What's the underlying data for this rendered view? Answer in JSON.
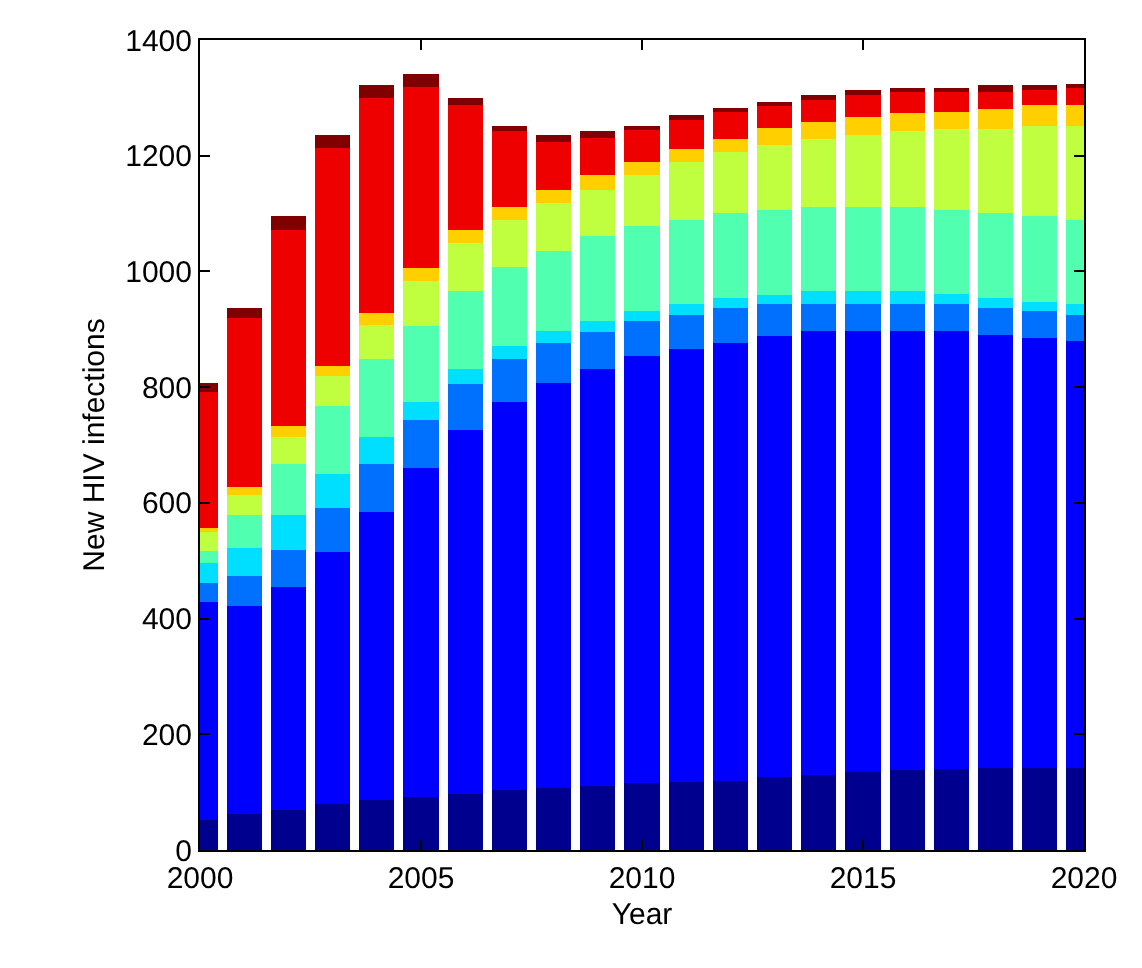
{
  "chart_data": {
    "type": "bar",
    "stacked": true,
    "xlabel": "Year",
    "ylabel": "New HIV infections",
    "x": [
      2000,
      2001,
      2002,
      2003,
      2004,
      2005,
      2006,
      2007,
      2008,
      2009,
      2010,
      2011,
      2012,
      2013,
      2014,
      2015,
      2016,
      2017,
      2018,
      2019,
      2020
    ],
    "xlim": [
      2000,
      2020
    ],
    "xticks": [
      2000,
      2005,
      2010,
      2015,
      2020
    ],
    "ylim": [
      0,
      1400
    ],
    "yticks": [
      0,
      200,
      400,
      600,
      800,
      1000,
      1200,
      1400
    ],
    "series": [
      {
        "color": "#00008f",
        "values": [
          52,
          63,
          69,
          80,
          86,
          92,
          97,
          103,
          107,
          111,
          115,
          117,
          120,
          126,
          130,
          135,
          138,
          140,
          141,
          141,
          141
        ]
      },
      {
        "color": "#0000ff",
        "values": [
          376,
          358,
          386,
          435,
          499,
          569,
          629,
          671,
          701,
          720,
          739,
          749,
          757,
          763,
          767,
          762,
          759,
          757,
          750,
          744,
          738
        ]
      },
      {
        "color": "#0070ff",
        "values": [
          34,
          53,
          64,
          76,
          82,
          82,
          80,
          75,
          69,
          64,
          60,
          59,
          60,
          54,
          46,
          46,
          46,
          46,
          46,
          46,
          46
        ]
      },
      {
        "color": "#00dfff",
        "values": [
          34,
          48,
          60,
          59,
          47,
          31,
          25,
          22,
          20,
          19,
          17,
          18,
          17,
          17,
          23,
          23,
          23,
          18,
          17,
          17,
          18
        ]
      },
      {
        "color": "#50ffaf",
        "values": [
          20,
          57,
          88,
          118,
          135,
          132,
          136,
          136,
          138,
          147,
          147,
          146,
          147,
          147,
          146,
          146,
          146,
          146,
          147,
          147,
          146
        ]
      },
      {
        "color": "#bfff40",
        "values": [
          34,
          34,
          47,
          52,
          59,
          78,
          82,
          82,
          83,
          80,
          88,
          100,
          106,
          112,
          117,
          124,
          130,
          139,
          145,
          157,
          163
        ]
      },
      {
        "color": "#ffcf00",
        "values": [
          6,
          14,
          18,
          17,
          21,
          22,
          23,
          23,
          23,
          26,
          24,
          23,
          22,
          29,
          29,
          31,
          31,
          30,
          35,
          35,
          36
        ]
      },
      {
        "color": "#ef0000",
        "values": [
          235,
          293,
          340,
          376,
          370,
          313,
          216,
          130,
          82,
          63,
          54,
          53,
          47,
          40,
          41,
          38,
          38,
          35,
          30,
          29,
          30
        ]
      },
      {
        "color": "#800000",
        "values": [
          17,
          17,
          23,
          22,
          23,
          23,
          11,
          10,
          12,
          12,
          8,
          5,
          6,
          5,
          6,
          8,
          5,
          5,
          11,
          6,
          4
        ]
      }
    ]
  }
}
